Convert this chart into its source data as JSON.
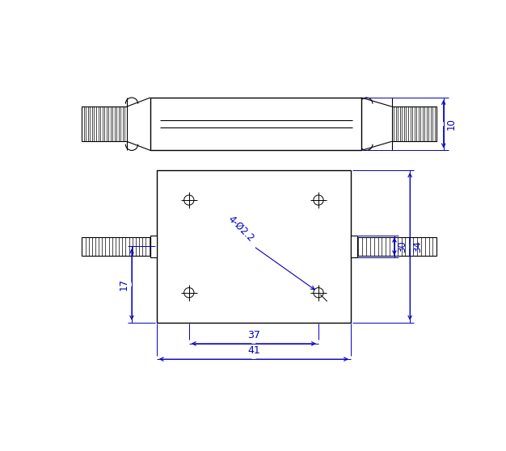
{
  "bg_color": "#ffffff",
  "lc": "#000000",
  "dc": "#0000bb",
  "fig_width": 6.26,
  "fig_height": 5.59,
  "dim_10": "10",
  "dim_30": "30",
  "dim_34": "34",
  "dim_17": "17",
  "dim_37": "37",
  "dim_41": "41",
  "dim_hole": "4-Ø2.2"
}
